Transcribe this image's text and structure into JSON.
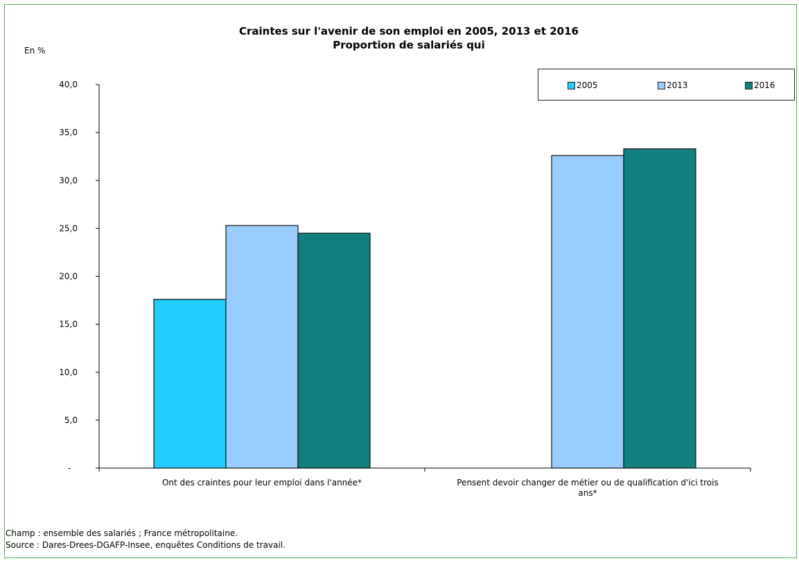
{
  "chart_data": {
    "type": "bar",
    "title": "Craintes sur l'avenir de son emploi en 2005, 2013 et 2016",
    "subtitle": "Proportion de salariés qui",
    "unit_label": "En %",
    "categories": [
      [
        "Ont des craintes pour leur emploi dans l'année*"
      ],
      [
        "Pensent devoir changer de métier ou de qualification d'ici trois",
        "ans*"
      ]
    ],
    "series": [
      {
        "name": "2005",
        "color": "#22ccff",
        "values": [
          17.6,
          null
        ]
      },
      {
        "name": "2013",
        "color": "#99ccff",
        "values": [
          25.3,
          32.6
        ]
      },
      {
        "name": "2016",
        "color": "#128080",
        "values": [
          24.5,
          33.3
        ]
      }
    ],
    "ylim": [
      0,
      40
    ],
    "yticks": [
      "-",
      "5,0",
      "10,0",
      "15,0",
      "20,0",
      "25,0",
      "30,0",
      "35,0",
      "40,0"
    ],
    "legend_position": "top-right",
    "grid": false
  },
  "notes": {
    "champ": "Champ : ensemble des salariés ; France métropolitaine.",
    "source": "Source : Dares-Drees-DGAFP-Insee, enquêtes Conditions de travail."
  }
}
